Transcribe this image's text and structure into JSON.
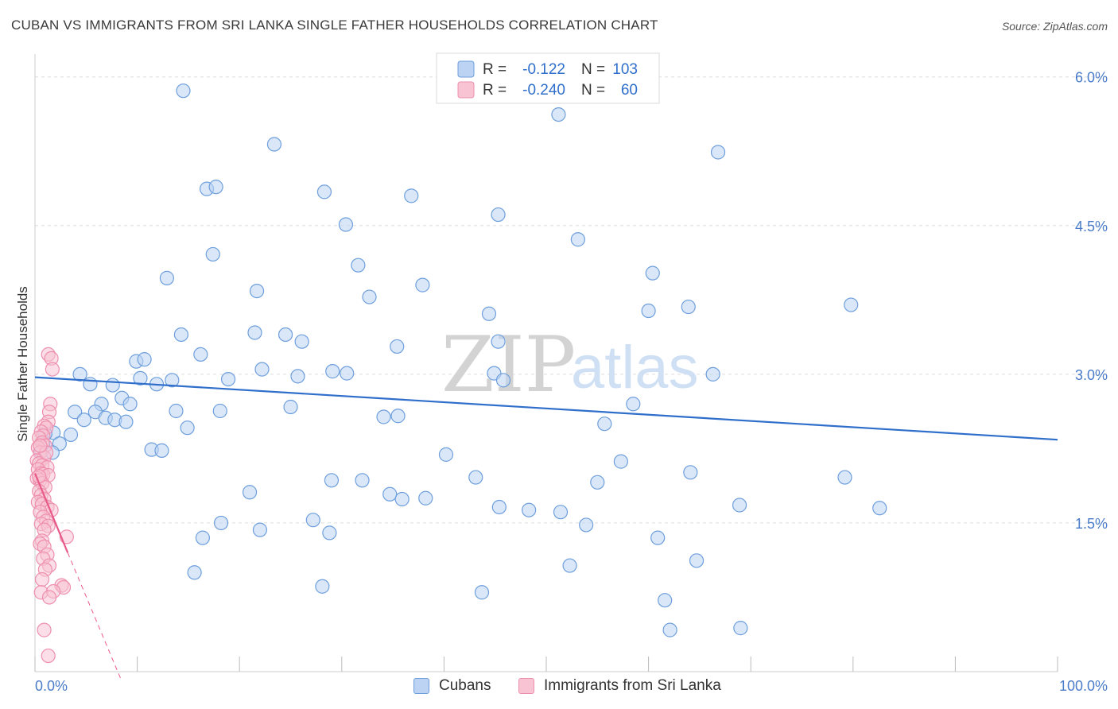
{
  "header": {
    "title": "CUBAN VS IMMIGRANTS FROM SRI LANKA SINGLE FATHER HOUSEHOLDS CORRELATION CHART",
    "source": "Source: ZipAtlas.com"
  },
  "watermark": {
    "zip": "ZIP",
    "atlas": "atlas"
  },
  "colors": {
    "cubans_fill": "#bcd3f4",
    "cubans_stroke": "#6e9fdc",
    "cubans_line": "#2f6fcb",
    "srilanka_fill": "#f8c3d3",
    "srilanka_stroke": "#ee8fae",
    "srilanka_line": "#e85a8a",
    "tick_label": "#4a7cc9",
    "grid": "#dddddd"
  },
  "legend": {
    "rows": [
      {
        "r_label": "R =",
        "r_value": "-0.122",
        "n_label": "N =",
        "n_value": "103"
      },
      {
        "r_label": "R =",
        "r_value": "-0.240",
        "n_label": "N =",
        "n_value": "60"
      }
    ]
  },
  "bottom_legend": {
    "cubans": "Cubans",
    "srilanka": "Immigrants from Sri Lanka"
  },
  "chart_data": {
    "type": "scatter",
    "title": "CUBAN VS IMMIGRANTS FROM SRI LANKA SINGLE FATHER HOUSEHOLDS CORRELATION CHART",
    "xlabel": "",
    "ylabel": "Single Father Households",
    "xlim": [
      0,
      100
    ],
    "ylim": [
      0,
      6.15
    ],
    "x_tick_labels": [
      "0.0%",
      "100.0%"
    ],
    "y_ticks": [
      1.5,
      3.0,
      4.5,
      6.0
    ],
    "y_tick_labels": [
      "1.5%",
      "3.0%",
      "4.5%",
      "6.0%"
    ],
    "grid": true,
    "legend_position": "top-center",
    "series": [
      {
        "name": "Cubans",
        "R": -0.122,
        "N": 103,
        "trend": {
          "x": [
            0,
            100
          ],
          "y": [
            2.97,
            2.34
          ]
        },
        "points": [
          [
            14.5,
            5.86
          ],
          [
            51.2,
            5.62
          ],
          [
            23.4,
            5.32
          ],
          [
            66.8,
            5.24
          ],
          [
            16.8,
            4.87
          ],
          [
            17.7,
            4.89
          ],
          [
            28.3,
            4.84
          ],
          [
            36.8,
            4.8
          ],
          [
            45.3,
            4.61
          ],
          [
            30.4,
            4.51
          ],
          [
            53.1,
            4.36
          ],
          [
            17.4,
            4.21
          ],
          [
            31.6,
            4.1
          ],
          [
            12.9,
            3.97
          ],
          [
            60.4,
            4.02
          ],
          [
            21.7,
            3.84
          ],
          [
            37.9,
            3.9
          ],
          [
            32.7,
            3.78
          ],
          [
            79.8,
            3.7
          ],
          [
            60.0,
            3.64
          ],
          [
            63.9,
            3.68
          ],
          [
            44.4,
            3.61
          ],
          [
            14.3,
            3.4
          ],
          [
            21.5,
            3.42
          ],
          [
            24.5,
            3.4
          ],
          [
            26.1,
            3.33
          ],
          [
            45.3,
            3.33
          ],
          [
            35.4,
            3.28
          ],
          [
            16.2,
            3.2
          ],
          [
            9.9,
            3.13
          ],
          [
            10.7,
            3.15
          ],
          [
            22.2,
            3.05
          ],
          [
            29.1,
            3.03
          ],
          [
            25.7,
            2.98
          ],
          [
            30.5,
            3.01
          ],
          [
            44.9,
            3.01
          ],
          [
            66.3,
            3.0
          ],
          [
            10.3,
            2.96
          ],
          [
            13.4,
            2.94
          ],
          [
            18.9,
            2.95
          ],
          [
            45.8,
            2.94
          ],
          [
            4.4,
            3.0
          ],
          [
            5.4,
            2.9
          ],
          [
            7.6,
            2.89
          ],
          [
            11.9,
            2.9
          ],
          [
            8.5,
            2.76
          ],
          [
            9.3,
            2.7
          ],
          [
            6.5,
            2.7
          ],
          [
            3.9,
            2.62
          ],
          [
            5.9,
            2.62
          ],
          [
            13.8,
            2.63
          ],
          [
            18.1,
            2.63
          ],
          [
            25.0,
            2.67
          ],
          [
            4.8,
            2.54
          ],
          [
            6.9,
            2.56
          ],
          [
            7.8,
            2.54
          ],
          [
            8.9,
            2.52
          ],
          [
            14.9,
            2.46
          ],
          [
            34.1,
            2.57
          ],
          [
            58.5,
            2.7
          ],
          [
            55.7,
            2.5
          ],
          [
            1.8,
            2.41
          ],
          [
            1.0,
            2.4
          ],
          [
            3.5,
            2.39
          ],
          [
            0.8,
            2.3
          ],
          [
            2.4,
            2.3
          ],
          [
            0.6,
            2.22
          ],
          [
            1.7,
            2.21
          ],
          [
            11.4,
            2.24
          ],
          [
            12.4,
            2.23
          ],
          [
            40.2,
            2.19
          ],
          [
            57.3,
            2.12
          ],
          [
            29.0,
            1.93
          ],
          [
            32.0,
            1.93
          ],
          [
            43.1,
            1.96
          ],
          [
            64.1,
            2.01
          ],
          [
            79.2,
            1.96
          ],
          [
            55.0,
            1.91
          ],
          [
            21.0,
            1.81
          ],
          [
            34.7,
            1.79
          ],
          [
            35.9,
            1.74
          ],
          [
            38.2,
            1.75
          ],
          [
            45.4,
            1.66
          ],
          [
            48.3,
            1.63
          ],
          [
            51.4,
            1.61
          ],
          [
            68.9,
            1.68
          ],
          [
            82.6,
            1.65
          ],
          [
            18.2,
            1.5
          ],
          [
            27.2,
            1.53
          ],
          [
            28.8,
            1.4
          ],
          [
            16.4,
            1.35
          ],
          [
            53.9,
            1.48
          ],
          [
            60.9,
            1.35
          ],
          [
            15.6,
            1.0
          ],
          [
            52.3,
            1.07
          ],
          [
            64.7,
            1.12
          ],
          [
            28.1,
            0.86
          ],
          [
            43.7,
            0.8
          ],
          [
            61.6,
            0.72
          ],
          [
            62.1,
            0.42
          ],
          [
            69.0,
            0.44
          ],
          [
            22.0,
            1.43
          ],
          [
            35.5,
            2.58
          ]
        ]
      },
      {
        "name": "Immigrants from Sri Lanka",
        "R": -0.24,
        "N": 60,
        "trend": {
          "x": [
            0,
            3.2
          ],
          "y": [
            2.0,
            1.2
          ]
        },
        "trend_extension": {
          "x": [
            3.2,
            8.5
          ],
          "y": [
            1.2,
            -0.1
          ]
        },
        "points": [
          [
            1.3,
            3.2
          ],
          [
            1.6,
            3.16
          ],
          [
            1.7,
            3.05
          ],
          [
            1.5,
            2.7
          ],
          [
            1.4,
            2.62
          ],
          [
            1.3,
            2.52
          ],
          [
            0.9,
            2.48
          ],
          [
            1.1,
            2.46
          ],
          [
            0.6,
            2.42
          ],
          [
            0.8,
            2.38
          ],
          [
            0.4,
            2.36
          ],
          [
            0.7,
            2.31
          ],
          [
            1.0,
            2.28
          ],
          [
            0.3,
            2.26
          ],
          [
            0.5,
            2.21
          ],
          [
            0.9,
            2.16
          ],
          [
            0.2,
            2.13
          ],
          [
            0.4,
            2.1
          ],
          [
            0.7,
            2.08
          ],
          [
            1.2,
            2.06
          ],
          [
            0.3,
            2.04
          ],
          [
            0.6,
            2.0
          ],
          [
            0.8,
            1.99
          ],
          [
            1.3,
            1.98
          ],
          [
            0.2,
            1.95
          ],
          [
            0.5,
            1.93
          ],
          [
            0.7,
            1.9
          ],
          [
            1.0,
            1.86
          ],
          [
            0.4,
            1.82
          ],
          [
            0.6,
            1.78
          ],
          [
            0.9,
            1.74
          ],
          [
            0.3,
            1.71
          ],
          [
            0.7,
            1.69
          ],
          [
            1.2,
            1.66
          ],
          [
            1.6,
            1.63
          ],
          [
            0.5,
            1.61
          ],
          [
            0.8,
            1.56
          ],
          [
            1.1,
            1.52
          ],
          [
            0.6,
            1.49
          ],
          [
            1.3,
            1.47
          ],
          [
            0.9,
            1.43
          ],
          [
            3.1,
            1.36
          ],
          [
            0.7,
            1.32
          ],
          [
            0.5,
            1.29
          ],
          [
            0.9,
            1.26
          ],
          [
            1.2,
            1.18
          ],
          [
            0.8,
            1.14
          ],
          [
            1.4,
            1.07
          ],
          [
            1.0,
            1.03
          ],
          [
            0.7,
            0.93
          ],
          [
            2.6,
            0.87
          ],
          [
            2.8,
            0.85
          ],
          [
            0.6,
            0.8
          ],
          [
            1.8,
            0.81
          ],
          [
            1.4,
            0.75
          ],
          [
            0.9,
            0.42
          ],
          [
            1.3,
            0.16
          ],
          [
            0.4,
            1.97
          ],
          [
            1.1,
            2.21
          ],
          [
            0.5,
            2.28
          ]
        ]
      }
    ]
  }
}
